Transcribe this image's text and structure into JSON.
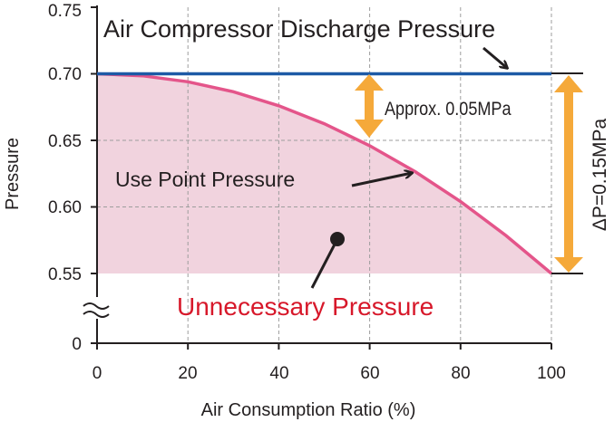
{
  "chart_data": {
    "type": "line",
    "x_ticks": [
      "0",
      "20",
      "40",
      "60",
      "80",
      "100"
    ],
    "y_ticks": [
      "0",
      "0.55",
      "0.60",
      "0.65",
      "0.70",
      "0.75"
    ],
    "xlabel": "Air Consumption Ratio (%)",
    "ylabel": "Pressure",
    "xlim": [
      0,
      100
    ],
    "ylim": [
      0.55,
      0.75
    ],
    "axis_break": true,
    "grid": true,
    "series": [
      {
        "name": "Air Compressor Discharge Pressure",
        "color": "#1d5aa6",
        "x": [
          0,
          100
        ],
        "y": [
          0.7,
          0.7
        ]
      },
      {
        "name": "Use Point Pressure",
        "color": "#e4558a",
        "x": [
          0,
          10,
          20,
          30,
          40,
          50,
          60,
          70,
          80,
          90,
          100
        ],
        "y": [
          0.7,
          0.6985,
          0.694,
          0.6865,
          0.676,
          0.6625,
          0.646,
          0.6265,
          0.604,
          0.5785,
          0.55
        ]
      }
    ],
    "shaded_region": {
      "label": "Unnecessary Pressure",
      "label_color": "#d7182a",
      "fill": "#f1d3de",
      "from_y": 0.55
    },
    "annotations": {
      "gap_label": "Approx. 0.05MPa",
      "gap_at_x": 60,
      "delta_label": "ΔP=0.15MPa",
      "arrow_color": "#f5a93a"
    }
  }
}
